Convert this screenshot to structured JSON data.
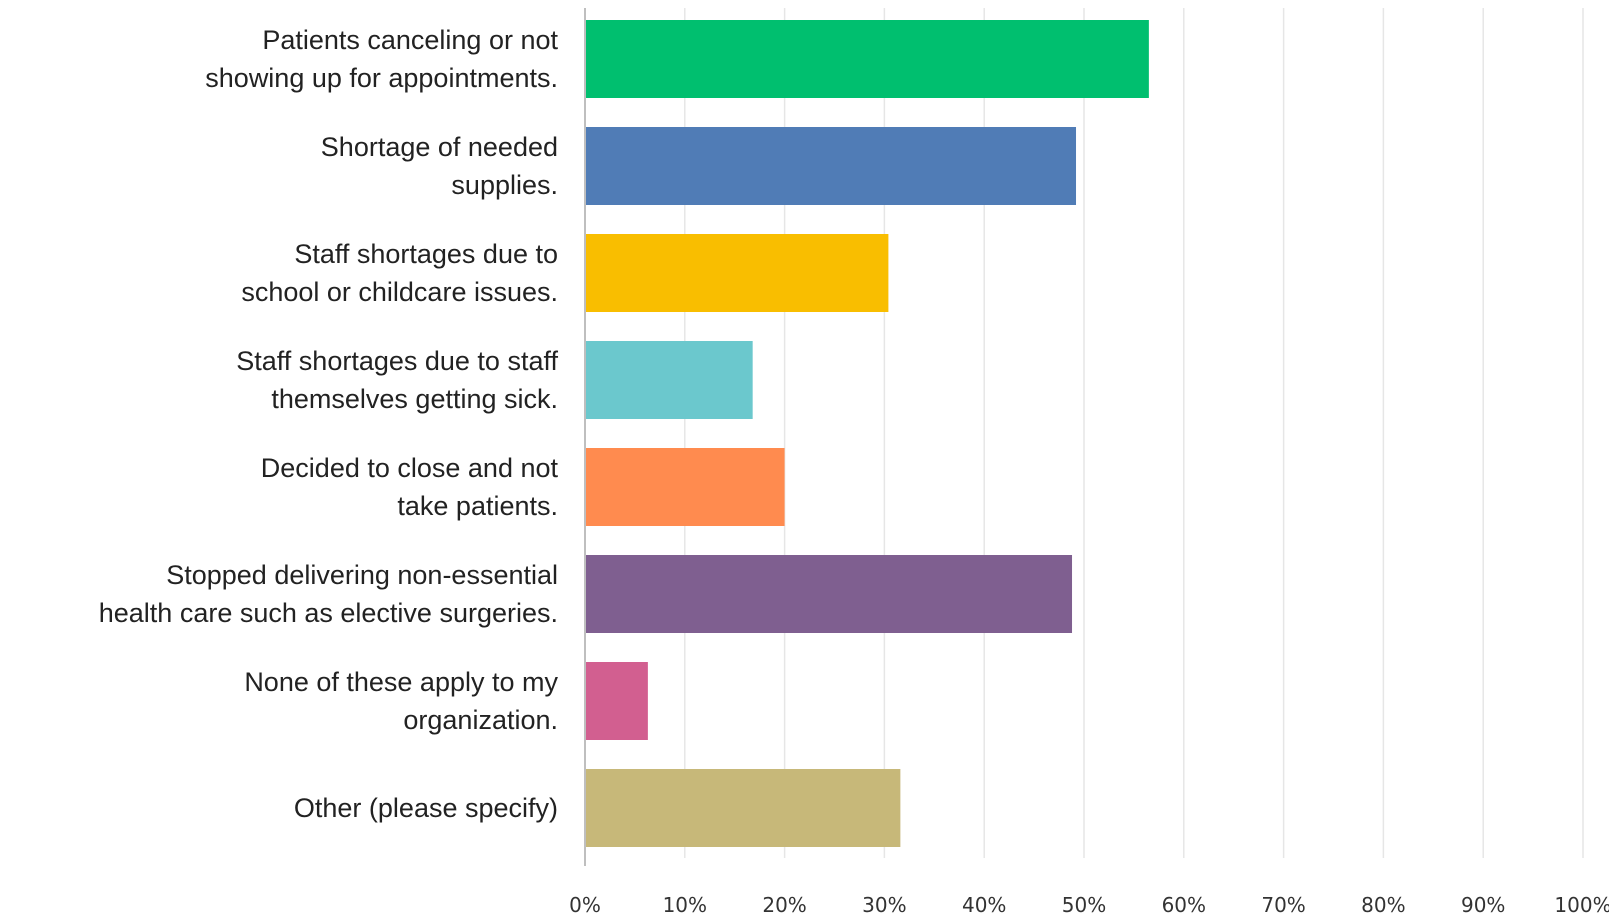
{
  "chart_data": {
    "type": "bar",
    "orientation": "horizontal",
    "categories": [
      [
        "Patients canceling or not",
        "showing up for appointments."
      ],
      [
        "Shortage of needed",
        "supplies."
      ],
      [
        "Staff shortages due to",
        "school or childcare issues."
      ],
      [
        "Staff shortages due to staff",
        "themselves getting sick."
      ],
      [
        "Decided to close and not",
        "take patients."
      ],
      [
        "Stopped delivering non-essential",
        "health care such as elective surgeries."
      ],
      [
        "None of these apply to my",
        "organization."
      ],
      [
        "Other (please specify)"
      ]
    ],
    "values": [
      56.5,
      49.2,
      30.4,
      16.8,
      20.0,
      48.8,
      6.3,
      31.6
    ],
    "colors": [
      "#00bf6f",
      "#507cb6",
      "#f9be00",
      "#6bc8cd",
      "#ff8b4f",
      "#7f5f90",
      "#d25f90",
      "#c7b879"
    ],
    "xlim": [
      0,
      100
    ],
    "xticks": [
      "0%",
      "10%",
      "20%",
      "30%",
      "40%",
      "50%",
      "60%",
      "70%",
      "80%",
      "90%",
      "100%"
    ],
    "grid": true,
    "title": "",
    "xlabel": "",
    "ylabel": ""
  }
}
